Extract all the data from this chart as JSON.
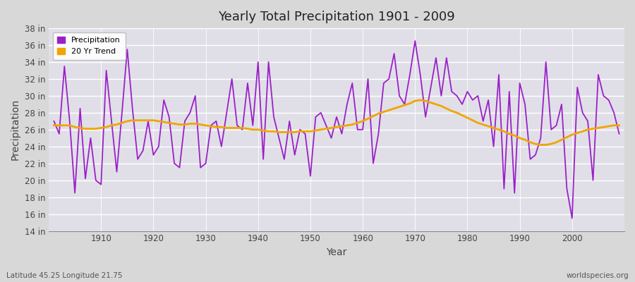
{
  "title": "Yearly Total Precipitation 1901 - 2009",
  "xlabel": "Year",
  "ylabel": "Precipitation",
  "subtitle_left": "Latitude 45.25 Longitude 21.75",
  "subtitle_right": "worldspecies.org",
  "precip_color": "#9b20c8",
  "trend_color": "#f0a500",
  "bg_outer": "#d8d8d8",
  "bg_inner": "#e0dfe8",
  "grid_color": "#ffffff",
  "ylim": [
    14,
    38
  ],
  "yticks": [
    14,
    16,
    18,
    20,
    22,
    24,
    26,
    28,
    30,
    32,
    34,
    36,
    38
  ],
  "xlim": [
    1900,
    2010
  ],
  "xticks": [
    1910,
    1920,
    1930,
    1940,
    1950,
    1960,
    1970,
    1980,
    1990,
    2000
  ],
  "years": [
    1901,
    1902,
    1903,
    1904,
    1905,
    1906,
    1907,
    1908,
    1909,
    1910,
    1911,
    1912,
    1913,
    1914,
    1915,
    1916,
    1917,
    1918,
    1919,
    1920,
    1921,
    1922,
    1923,
    1924,
    1925,
    1926,
    1927,
    1928,
    1929,
    1930,
    1931,
    1932,
    1933,
    1934,
    1935,
    1936,
    1937,
    1938,
    1939,
    1940,
    1941,
    1942,
    1943,
    1944,
    1945,
    1946,
    1947,
    1948,
    1949,
    1950,
    1951,
    1952,
    1953,
    1954,
    1955,
    1956,
    1957,
    1958,
    1959,
    1960,
    1961,
    1962,
    1963,
    1964,
    1965,
    1966,
    1967,
    1968,
    1969,
    1970,
    1971,
    1972,
    1973,
    1974,
    1975,
    1976,
    1977,
    1978,
    1979,
    1980,
    1981,
    1982,
    1983,
    1984,
    1985,
    1986,
    1987,
    1988,
    1989,
    1990,
    1991,
    1992,
    1993,
    1994,
    1995,
    1996,
    1997,
    1998,
    1999,
    2000,
    2001,
    2002,
    2003,
    2004,
    2005,
    2006,
    2007,
    2008,
    2009
  ],
  "precip": [
    27.0,
    25.5,
    33.5,
    27.0,
    18.5,
    28.5,
    20.2,
    25.0,
    20.0,
    19.5,
    33.0,
    27.0,
    21.0,
    28.0,
    35.5,
    28.5,
    22.5,
    23.5,
    27.0,
    23.0,
    24.0,
    29.5,
    27.5,
    22.0,
    21.5,
    27.0,
    28.0,
    30.0,
    21.5,
    22.0,
    26.5,
    27.0,
    24.0,
    28.0,
    32.0,
    26.5,
    26.0,
    31.5,
    26.5,
    34.0,
    22.5,
    34.0,
    27.5,
    25.0,
    22.5,
    27.0,
    23.0,
    26.0,
    25.5,
    20.5,
    27.5,
    28.0,
    26.5,
    25.0,
    27.5,
    25.5,
    29.0,
    31.5,
    26.0,
    26.0,
    32.0,
    22.0,
    25.5,
    31.5,
    32.0,
    35.0,
    30.0,
    29.0,
    32.5,
    36.5,
    32.5,
    27.5,
    31.0,
    34.5,
    30.0,
    34.5,
    30.5,
    30.0,
    29.0,
    30.5,
    29.5,
    30.0,
    27.0,
    29.5,
    24.0,
    32.5,
    19.0,
    30.5,
    18.5,
    31.5,
    29.0,
    22.5,
    23.0,
    25.0,
    34.0,
    26.0,
    26.5,
    29.0,
    19.0,
    15.5,
    31.0,
    28.0,
    27.0,
    20.0,
    32.5,
    30.0,
    29.5,
    28.0,
    25.5
  ],
  "trend": [
    26.5,
    26.5,
    26.5,
    26.5,
    26.3,
    26.2,
    26.1,
    26.1,
    26.1,
    26.2,
    26.3,
    26.5,
    26.6,
    26.8,
    27.0,
    27.1,
    27.1,
    27.1,
    27.1,
    27.1,
    27.0,
    26.9,
    26.8,
    26.7,
    26.6,
    26.6,
    26.7,
    26.7,
    26.6,
    26.5,
    26.4,
    26.3,
    26.3,
    26.2,
    26.2,
    26.2,
    26.2,
    26.1,
    26.0,
    26.0,
    25.9,
    25.8,
    25.8,
    25.7,
    25.7,
    25.7,
    25.7,
    25.8,
    25.8,
    25.8,
    25.9,
    26.0,
    26.1,
    26.2,
    26.3,
    26.4,
    26.5,
    26.6,
    26.8,
    27.0,
    27.3,
    27.6,
    27.9,
    28.1,
    28.3,
    28.5,
    28.7,
    28.9,
    29.1,
    29.4,
    29.5,
    29.4,
    29.2,
    29.0,
    28.8,
    28.5,
    28.2,
    28.0,
    27.7,
    27.4,
    27.1,
    26.8,
    26.6,
    26.4,
    26.2,
    26.0,
    25.8,
    25.5,
    25.3,
    25.0,
    24.8,
    24.5,
    24.3,
    24.2,
    24.2,
    24.3,
    24.5,
    24.8,
    25.1,
    25.4,
    25.6,
    25.8,
    26.0,
    26.1,
    26.2,
    26.3,
    26.4,
    26.5,
    26.5
  ]
}
